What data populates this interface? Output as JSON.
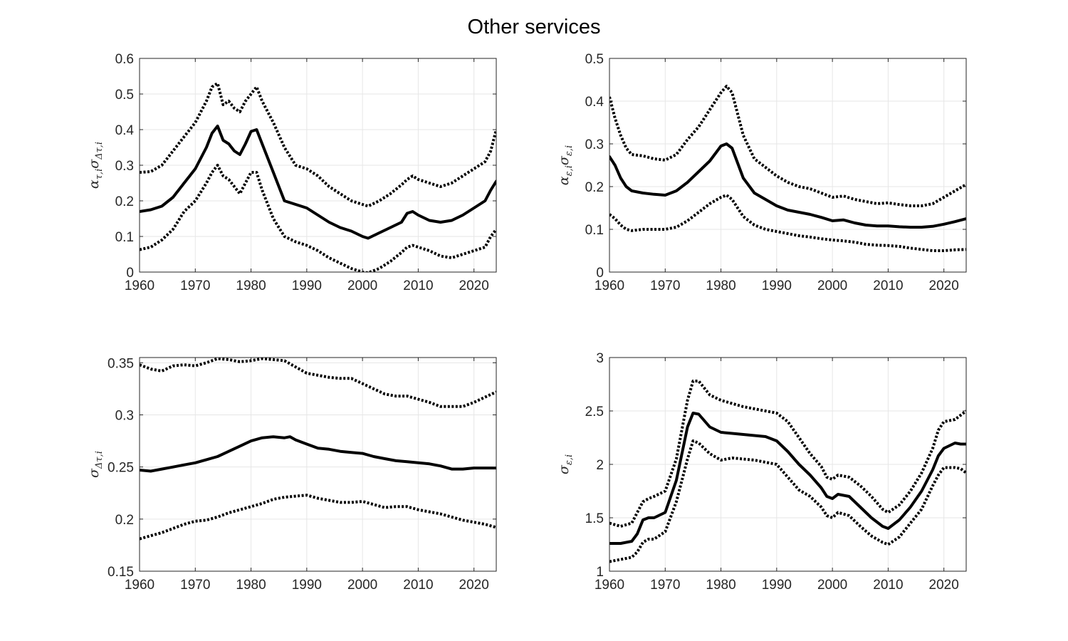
{
  "figure": {
    "title": "Other services"
  },
  "chart_data": [
    {
      "type": "line",
      "ylabel": {
        "main": "α",
        "sub1": "τ,i",
        "mid": "σ",
        "sub2": "Δτ,i"
      },
      "xlim": [
        1960,
        2024
      ],
      "ylim": [
        0,
        0.6
      ],
      "xticks": [
        1960,
        1970,
        1980,
        1990,
        2000,
        2010,
        2020
      ],
      "yticks": [
        0,
        0.1,
        0.2,
        0.3,
        0.4,
        0.5,
        0.6
      ],
      "grid": true,
      "series": [
        {
          "style": "solid",
          "x": [
            1960,
            1962,
            1964,
            1966,
            1968,
            1970,
            1972,
            1973,
            1974,
            1975,
            1976,
            1977,
            1978,
            1979,
            1980,
            1981,
            1982,
            1984,
            1986,
            1988,
            1990,
            1992,
            1994,
            1996,
            1998,
            2000,
            2001,
            2003,
            2005,
            2007,
            2008,
            2009,
            2010,
            2012,
            2014,
            2016,
            2018,
            2020,
            2022,
            2023,
            2024
          ],
          "values": [
            0.17,
            0.175,
            0.185,
            0.21,
            0.25,
            0.29,
            0.35,
            0.39,
            0.41,
            0.37,
            0.36,
            0.34,
            0.33,
            0.36,
            0.395,
            0.4,
            0.36,
            0.28,
            0.2,
            0.19,
            0.18,
            0.16,
            0.14,
            0.125,
            0.115,
            0.1,
            0.095,
            0.11,
            0.125,
            0.14,
            0.165,
            0.17,
            0.16,
            0.145,
            0.14,
            0.145,
            0.16,
            0.18,
            0.2,
            0.23,
            0.255
          ]
        },
        {
          "style": "dotted",
          "x": [
            1960,
            1962,
            1964,
            1966,
            1968,
            1970,
            1972,
            1973,
            1974,
            1975,
            1976,
            1977,
            1978,
            1979,
            1980,
            1981,
            1982,
            1984,
            1986,
            1988,
            1990,
            1992,
            1994,
            1996,
            1998,
            2000,
            2001,
            2003,
            2005,
            2007,
            2008,
            2009,
            2010,
            2012,
            2014,
            2016,
            2018,
            2020,
            2022,
            2023,
            2024
          ],
          "values": [
            0.28,
            0.282,
            0.3,
            0.34,
            0.38,
            0.42,
            0.48,
            0.52,
            0.53,
            0.47,
            0.48,
            0.46,
            0.45,
            0.48,
            0.5,
            0.52,
            0.48,
            0.42,
            0.35,
            0.3,
            0.29,
            0.27,
            0.24,
            0.22,
            0.2,
            0.19,
            0.185,
            0.2,
            0.22,
            0.245,
            0.26,
            0.27,
            0.26,
            0.25,
            0.24,
            0.25,
            0.27,
            0.29,
            0.31,
            0.34,
            0.4
          ]
        },
        {
          "style": "dotted",
          "x": [
            1960,
            1962,
            1964,
            1966,
            1968,
            1970,
            1972,
            1973,
            1974,
            1975,
            1976,
            1977,
            1978,
            1979,
            1980,
            1981,
            1982,
            1984,
            1986,
            1988,
            1990,
            1992,
            1994,
            1996,
            1998,
            2000,
            2001,
            2003,
            2005,
            2007,
            2008,
            2009,
            2010,
            2012,
            2014,
            2016,
            2018,
            2020,
            2022,
            2023,
            2024
          ],
          "values": [
            0.063,
            0.07,
            0.09,
            0.12,
            0.17,
            0.2,
            0.25,
            0.28,
            0.3,
            0.27,
            0.26,
            0.24,
            0.22,
            0.25,
            0.28,
            0.28,
            0.23,
            0.15,
            0.1,
            0.085,
            0.075,
            0.06,
            0.04,
            0.025,
            0.01,
            0.0,
            -0.002,
            0.01,
            0.03,
            0.055,
            0.07,
            0.075,
            0.07,
            0.06,
            0.045,
            0.04,
            0.05,
            0.06,
            0.07,
            0.1,
            0.12
          ]
        }
      ]
    },
    {
      "type": "line",
      "ylabel": {
        "main": "α",
        "sub1": "ε,i",
        "mid": "σ",
        "sub2": "ε,i"
      },
      "xlim": [
        1960,
        2024
      ],
      "ylim": [
        0,
        0.5
      ],
      "xticks": [
        1960,
        1970,
        1980,
        1990,
        2000,
        2010,
        2020
      ],
      "yticks": [
        0,
        0.1,
        0.2,
        0.3,
        0.4,
        0.5
      ],
      "grid": true,
      "series": [
        {
          "style": "solid",
          "x": [
            1960,
            1961,
            1962,
            1963,
            1964,
            1966,
            1968,
            1970,
            1972,
            1974,
            1976,
            1978,
            1980,
            1981,
            1982,
            1984,
            1986,
            1988,
            1990,
            1992,
            1994,
            1996,
            1998,
            2000,
            2002,
            2004,
            2006,
            2008,
            2010,
            2012,
            2014,
            2016,
            2018,
            2020,
            2022,
            2024
          ],
          "values": [
            0.27,
            0.25,
            0.22,
            0.2,
            0.19,
            0.185,
            0.182,
            0.18,
            0.19,
            0.21,
            0.235,
            0.26,
            0.295,
            0.3,
            0.29,
            0.22,
            0.185,
            0.17,
            0.155,
            0.145,
            0.14,
            0.135,
            0.128,
            0.12,
            0.122,
            0.115,
            0.11,
            0.108,
            0.108,
            0.106,
            0.105,
            0.105,
            0.107,
            0.112,
            0.118,
            0.125
          ]
        },
        {
          "style": "dotted",
          "x": [
            1960,
            1961,
            1962,
            1963,
            1964,
            1966,
            1968,
            1970,
            1972,
            1974,
            1976,
            1978,
            1980,
            1981,
            1982,
            1984,
            1986,
            1988,
            1990,
            1992,
            1994,
            1996,
            1998,
            2000,
            2002,
            2004,
            2006,
            2008,
            2010,
            2012,
            2014,
            2016,
            2018,
            2020,
            2022,
            2024
          ],
          "values": [
            0.41,
            0.36,
            0.32,
            0.29,
            0.275,
            0.272,
            0.265,
            0.262,
            0.275,
            0.31,
            0.34,
            0.38,
            0.42,
            0.435,
            0.42,
            0.32,
            0.265,
            0.245,
            0.225,
            0.21,
            0.2,
            0.195,
            0.185,
            0.175,
            0.178,
            0.17,
            0.165,
            0.16,
            0.162,
            0.158,
            0.155,
            0.155,
            0.16,
            0.175,
            0.19,
            0.205
          ]
        },
        {
          "style": "dotted",
          "x": [
            1960,
            1961,
            1962,
            1963,
            1964,
            1966,
            1968,
            1970,
            1972,
            1974,
            1976,
            1978,
            1980,
            1981,
            1982,
            1984,
            1986,
            1988,
            1990,
            1992,
            1994,
            1996,
            1998,
            2000,
            2002,
            2004,
            2006,
            2008,
            2010,
            2012,
            2014,
            2016,
            2018,
            2020,
            2022,
            2024
          ],
          "values": [
            0.135,
            0.125,
            0.11,
            0.1,
            0.097,
            0.1,
            0.1,
            0.1,
            0.105,
            0.12,
            0.14,
            0.16,
            0.175,
            0.18,
            0.17,
            0.13,
            0.11,
            0.1,
            0.095,
            0.09,
            0.085,
            0.082,
            0.078,
            0.075,
            0.073,
            0.07,
            0.065,
            0.063,
            0.062,
            0.06,
            0.056,
            0.053,
            0.05,
            0.05,
            0.052,
            0.053
          ]
        }
      ]
    },
    {
      "type": "line",
      "ylabel": {
        "main": "σ",
        "sub1": "Δτ,i",
        "mid": "",
        "sub2": ""
      },
      "xlim": [
        1960,
        2024
      ],
      "ylim": [
        0.15,
        0.355
      ],
      "xticks": [
        1960,
        1970,
        1980,
        1990,
        2000,
        2010,
        2020
      ],
      "yticks": [
        0.15,
        0.2,
        0.25,
        0.3,
        0.35
      ],
      "grid": true,
      "series": [
        {
          "style": "solid",
          "x": [
            1960,
            1962,
            1964,
            1966,
            1968,
            1970,
            1972,
            1974,
            1976,
            1978,
            1980,
            1982,
            1984,
            1986,
            1987,
            1988,
            1990,
            1992,
            1994,
            1996,
            1998,
            2000,
            2002,
            2004,
            2006,
            2008,
            2010,
            2012,
            2014,
            2016,
            2018,
            2020,
            2022,
            2024
          ],
          "values": [
            0.247,
            0.246,
            0.248,
            0.25,
            0.252,
            0.254,
            0.257,
            0.26,
            0.265,
            0.27,
            0.275,
            0.278,
            0.279,
            0.278,
            0.279,
            0.276,
            0.272,
            0.268,
            0.267,
            0.265,
            0.264,
            0.263,
            0.26,
            0.258,
            0.256,
            0.255,
            0.254,
            0.253,
            0.251,
            0.248,
            0.248,
            0.249,
            0.249,
            0.249
          ]
        },
        {
          "style": "dotted",
          "x": [
            1960,
            1962,
            1964,
            1966,
            1968,
            1970,
            1972,
            1974,
            1976,
            1978,
            1980,
            1982,
            1984,
            1986,
            1988,
            1990,
            1992,
            1994,
            1996,
            1998,
            2000,
            2002,
            2004,
            2006,
            2008,
            2010,
            2012,
            2014,
            2016,
            2018,
            2020,
            2022,
            2024
          ],
          "values": [
            0.348,
            0.344,
            0.342,
            0.347,
            0.348,
            0.347,
            0.35,
            0.354,
            0.353,
            0.351,
            0.352,
            0.354,
            0.353,
            0.352,
            0.346,
            0.34,
            0.338,
            0.336,
            0.335,
            0.335,
            0.33,
            0.325,
            0.32,
            0.318,
            0.318,
            0.315,
            0.312,
            0.308,
            0.308,
            0.308,
            0.312,
            0.317,
            0.322
          ]
        },
        {
          "style": "dotted",
          "x": [
            1960,
            1962,
            1964,
            1966,
            1968,
            1970,
            1972,
            1974,
            1976,
            1978,
            1980,
            1982,
            1984,
            1986,
            1988,
            1990,
            1992,
            1994,
            1996,
            1998,
            2000,
            2002,
            2004,
            2006,
            2008,
            2010,
            2012,
            2014,
            2016,
            2018,
            2020,
            2022,
            2024
          ],
          "values": [
            0.181,
            0.184,
            0.187,
            0.191,
            0.195,
            0.198,
            0.199,
            0.202,
            0.206,
            0.209,
            0.212,
            0.215,
            0.219,
            0.221,
            0.222,
            0.223,
            0.22,
            0.218,
            0.216,
            0.216,
            0.217,
            0.214,
            0.211,
            0.212,
            0.212,
            0.209,
            0.207,
            0.205,
            0.202,
            0.199,
            0.197,
            0.195,
            0.192
          ]
        }
      ]
    },
    {
      "type": "line",
      "ylabel": {
        "main": "σ",
        "sub1": "ε,i",
        "mid": "",
        "sub2": ""
      },
      "xlim": [
        1960,
        2024
      ],
      "ylim": [
        1,
        3
      ],
      "xticks": [
        1960,
        1970,
        1980,
        1990,
        2000,
        2010,
        2020
      ],
      "yticks": [
        1,
        1.5,
        2,
        2.5,
        3
      ],
      "grid": true,
      "series": [
        {
          "style": "solid",
          "x": [
            1960,
            1962,
            1964,
            1965,
            1966,
            1967,
            1968,
            1970,
            1972,
            1974,
            1975,
            1976,
            1978,
            1980,
            1982,
            1984,
            1986,
            1988,
            1990,
            1992,
            1994,
            1996,
            1998,
            1999,
            2000,
            2001,
            2003,
            2005,
            2007,
            2009,
            2010,
            2012,
            2014,
            2016,
            2018,
            2019,
            2020,
            2022,
            2023,
            2024
          ],
          "values": [
            1.26,
            1.26,
            1.28,
            1.35,
            1.48,
            1.5,
            1.5,
            1.55,
            1.85,
            2.35,
            2.48,
            2.47,
            2.35,
            2.3,
            2.29,
            2.28,
            2.27,
            2.26,
            2.22,
            2.12,
            2.0,
            1.9,
            1.78,
            1.7,
            1.68,
            1.72,
            1.7,
            1.6,
            1.5,
            1.42,
            1.4,
            1.48,
            1.6,
            1.75,
            1.95,
            2.08,
            2.15,
            2.2,
            2.19,
            2.19
          ]
        },
        {
          "style": "dotted",
          "x": [
            1960,
            1962,
            1964,
            1965,
            1966,
            1967,
            1968,
            1970,
            1972,
            1974,
            1975,
            1976,
            1978,
            1980,
            1982,
            1984,
            1986,
            1988,
            1990,
            1992,
            1994,
            1996,
            1998,
            1999,
            2000,
            2001,
            2003,
            2005,
            2007,
            2009,
            2010,
            2012,
            2014,
            2016,
            2018,
            2019,
            2020,
            2022,
            2023,
            2024
          ],
          "values": [
            1.45,
            1.42,
            1.45,
            1.55,
            1.65,
            1.68,
            1.7,
            1.75,
            2.05,
            2.6,
            2.78,
            2.78,
            2.65,
            2.6,
            2.57,
            2.54,
            2.52,
            2.5,
            2.48,
            2.4,
            2.25,
            2.1,
            1.98,
            1.88,
            1.86,
            1.9,
            1.88,
            1.8,
            1.7,
            1.58,
            1.55,
            1.62,
            1.75,
            1.92,
            2.15,
            2.32,
            2.4,
            2.42,
            2.46,
            2.5
          ]
        },
        {
          "style": "dotted",
          "x": [
            1960,
            1962,
            1964,
            1965,
            1966,
            1967,
            1968,
            1970,
            1972,
            1974,
            1975,
            1976,
            1978,
            1980,
            1982,
            1984,
            1986,
            1988,
            1990,
            1992,
            1994,
            1996,
            1998,
            1999,
            2000,
            2001,
            2003,
            2005,
            2007,
            2009,
            2010,
            2012,
            2014,
            2016,
            2018,
            2019,
            2020,
            2022,
            2023,
            2024
          ],
          "values": [
            1.09,
            1.11,
            1.13,
            1.18,
            1.27,
            1.3,
            1.3,
            1.37,
            1.65,
            2.05,
            2.22,
            2.2,
            2.1,
            2.04,
            2.06,
            2.05,
            2.04,
            2.02,
            2.0,
            1.88,
            1.76,
            1.7,
            1.6,
            1.52,
            1.5,
            1.55,
            1.52,
            1.42,
            1.33,
            1.27,
            1.25,
            1.32,
            1.45,
            1.58,
            1.8,
            1.9,
            1.97,
            1.97,
            1.96,
            1.92
          ]
        }
      ]
    }
  ]
}
